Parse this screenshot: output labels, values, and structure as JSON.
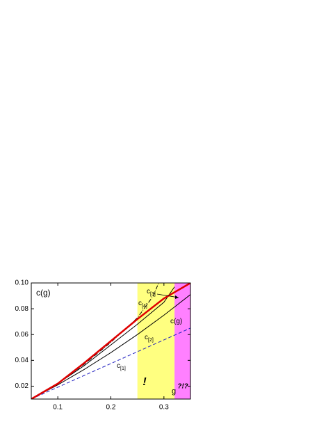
{
  "chart_data": {
    "type": "line",
    "ylabel": "c(g)",
    "xlabel": "g",
    "xlim": [
      0.05,
      0.35
    ],
    "xticks": [
      0.1,
      0.2,
      0.3
    ],
    "ylim": [
      0.01,
      0.1
    ],
    "yticks": [
      0.02,
      0.04,
      0.06,
      0.08,
      {
        "value": 0.1,
        "label": "0.10"
      }
    ],
    "regions": [
      {
        "from": 0.25,
        "to": 0.32,
        "color": "#ffff80",
        "label": "!"
      },
      {
        "from": 0.32,
        "to": 0.35,
        "color": "#ff80ff",
        "label": "?!?"
      }
    ],
    "series": [
      {
        "name": "c",
        "sub": "[1]",
        "color": "#2020c0",
        "style": "dashed",
        "x": [
          0.05,
          0.35
        ],
        "values": [
          0.01,
          0.065
        ]
      },
      {
        "name": "c",
        "sub": "[2]",
        "color": "#000000",
        "style": "solid",
        "x": [
          0.05,
          0.1,
          0.15,
          0.2,
          0.25,
          0.3,
          0.35
        ],
        "values": [
          0.01,
          0.021,
          0.033,
          0.046,
          0.06,
          0.075,
          0.091
        ]
      },
      {
        "name": "c",
        "sub": "[3]",
        "color": "#000000",
        "style": "solid",
        "x": [
          0.05,
          0.1,
          0.15,
          0.2,
          0.25,
          0.3,
          0.32
        ],
        "values": [
          0.01,
          0.022,
          0.036,
          0.052,
          0.068,
          0.085,
          0.097
        ]
      },
      {
        "name": "c",
        "sub": "[4]",
        "color": "#000000",
        "style": "dashdot",
        "x": [
          0.05,
          0.1,
          0.15,
          0.2,
          0.25,
          0.28,
          0.29
        ],
        "values": [
          0.01,
          0.022,
          0.037,
          0.054,
          0.073,
          0.09,
          0.1
        ]
      },
      {
        "name": "c(g)",
        "color": "#e00000",
        "style": "thick",
        "x": [
          0.05,
          0.1,
          0.15,
          0.2,
          0.25,
          0.3,
          0.35
        ],
        "values": [
          0.01,
          0.022,
          0.038,
          0.055,
          0.072,
          0.088,
          0.1
        ]
      }
    ]
  }
}
